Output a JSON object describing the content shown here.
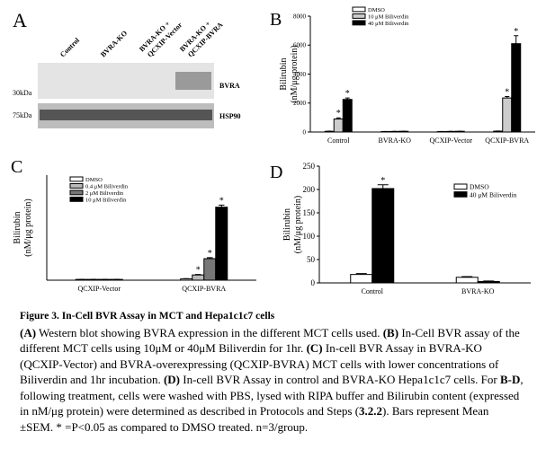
{
  "panel_a": {
    "label": "A",
    "lanes": [
      "Control",
      "BVRA-KO",
      [
        "BVRA-KO +",
        "QCXIP-Vector"
      ],
      [
        "BVRA-KO +",
        "QCXIP-BVRA"
      ]
    ],
    "markers": [
      "30kDa",
      "75kDa"
    ],
    "bands": [
      "BVRA",
      "HSP90"
    ]
  },
  "chart_data": [
    {
      "type": "bar",
      "panel_label": "B",
      "ylabel": [
        "Bilirubin",
        "(nM/μg protein)"
      ],
      "categories": [
        "Control",
        "BVRA-KO",
        "QCXIP-Vector",
        "QCXIP-BVRA"
      ],
      "ylim": [
        0,
        8000
      ],
      "yticks": [
        0,
        2000,
        4000,
        6000,
        8000
      ],
      "series": [
        {
          "name": "DMSO",
          "color": "#ffffff",
          "values": [
            50,
            30,
            30,
            60
          ],
          "errors": [
            15,
            5,
            5,
            10
          ]
        },
        {
          "name": "10 μM Biliverdin",
          "color": "#cccccc",
          "values": [
            900,
            40,
            40,
            2350
          ],
          "errors": [
            80,
            5,
            5,
            100
          ],
          "annotations": [
            "*",
            null,
            null,
            "*"
          ]
        },
        {
          "name": "40 μM Biliverdin",
          "color": "#000000",
          "values": [
            2250,
            50,
            50,
            6100
          ],
          "errors": [
            100,
            5,
            5,
            550
          ],
          "annotations": [
            "*",
            null,
            null,
            "*"
          ]
        }
      ]
    },
    {
      "type": "bar",
      "panel_label": "C",
      "ylabel": [
        "Bilirubin",
        "(nM/μg protein)"
      ],
      "categories": [
        "QCXIP-Vector",
        "QCXIP-BVRA"
      ],
      "ylim": [
        0,
        2000
      ],
      "series": [
        {
          "name": "DMSO",
          "color": "#ffffff",
          "values": [
            15,
            25
          ],
          "errors": [
            3,
            5
          ]
        },
        {
          "name": "0.4 μM Biliverdin",
          "color": "#bbbbbb",
          "values": [
            15,
            100
          ],
          "errors": [
            3,
            10
          ],
          "annotations": [
            null,
            "*"
          ]
        },
        {
          "name": "2 μM Biliverdin",
          "color": "#777777",
          "values": [
            15,
            410
          ],
          "errors": [
            3,
            20
          ],
          "annotations": [
            null,
            "*"
          ]
        },
        {
          "name": "10 μM Biliverdin",
          "color": "#000000",
          "values": [
            15,
            1390
          ],
          "errors": [
            3,
            40
          ],
          "annotations": [
            null,
            "*"
          ]
        }
      ]
    },
    {
      "type": "bar",
      "panel_label": "D",
      "ylabel": [
        "Bilirubin",
        "(nM/μg protein)"
      ],
      "categories": [
        "Control",
        "BVRA-KO"
      ],
      "ylim": [
        0,
        250
      ],
      "yticks": [
        0,
        50,
        100,
        150,
        200,
        250
      ],
      "series": [
        {
          "name": "DMSO",
          "color": "#ffffff",
          "values": [
            18,
            12
          ],
          "errors": [
            2,
            1.5
          ]
        },
        {
          "name": "40 μM Biliverdin",
          "color": "#000000",
          "values": [
            202,
            3
          ],
          "errors": [
            8,
            1
          ],
          "annotations": [
            "*",
            null
          ]
        }
      ]
    }
  ],
  "caption": {
    "title": "Figure 3. In-Cell BVR Assay in MCT and Hepa1c1c7 cells",
    "runs": [
      {
        "text": "(A)",
        "bold": true
      },
      {
        "text": " Western blot showing BVRA expression in the different MCT cells used. ",
        "bold": false
      },
      {
        "text": "(B)",
        "bold": true
      },
      {
        "text": " In-Cell BVR assay of the different MCT cells using 10μM or 40μM Biliverdin for 1hr. ",
        "bold": false
      },
      {
        "text": "(C)",
        "bold": true
      },
      {
        "text": " In-cell BVR Assay in BVRA-KO (QCXIP-Vector) and BVRA-overexpressing (QCXIP-BVRA) MCT cells with lower concentrations of Biliverdin and 1hr incubation. ",
        "bold": false
      },
      {
        "text": "(D)",
        "bold": true
      },
      {
        "text": " In-cell BVR Assay in control and BVRA-KO Hepa1c1c7 cells. For ",
        "bold": false
      },
      {
        "text": "B-D",
        "bold": true
      },
      {
        "text": ", following treatment, cells were washed with PBS, lysed with RIPA buffer and Bilirubin content (expressed in nM/μg protein) were determined as described in Protocols and Steps (",
        "bold": false
      },
      {
        "text": "3.2.2",
        "bold": true
      },
      {
        "text": "). Bars represent Mean ±SEM. * =P<0.05 as compared to DMSO treated. n=3/group.",
        "bold": false
      }
    ]
  }
}
